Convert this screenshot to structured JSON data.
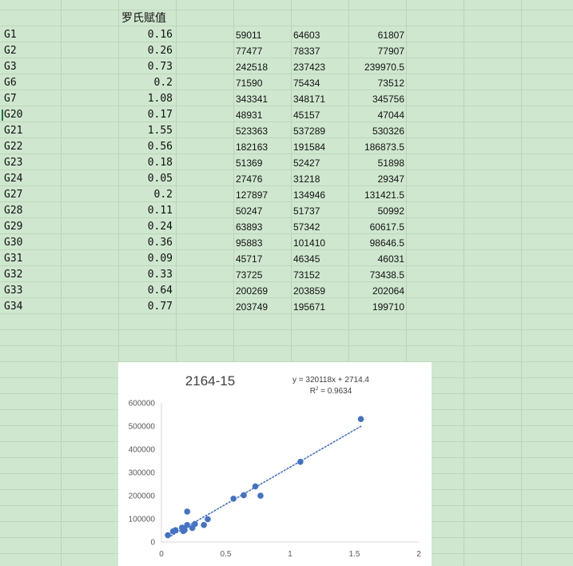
{
  "sheet": {
    "header": "罗氏赋值",
    "rows": [
      {
        "label": "G1",
        "rf": "0.16",
        "v1": "59011",
        "v2": "64603",
        "avg": "61807"
      },
      {
        "label": "G2",
        "rf": "0.26",
        "v1": "77477",
        "v2": "78337",
        "avg": "77907"
      },
      {
        "label": "G3",
        "rf": "0.73",
        "v1": "242518",
        "v2": "237423",
        "avg": "239970.5"
      },
      {
        "label": "G6",
        "rf": "0.2",
        "v1": "71590",
        "v2": "75434",
        "avg": "73512"
      },
      {
        "label": "G7",
        "rf": "1.08",
        "v1": "343341",
        "v2": "348171",
        "avg": "345756"
      },
      {
        "label": "G20",
        "rf": "0.17",
        "v1": "48931",
        "v2": "45157",
        "avg": "47044"
      },
      {
        "label": "G21",
        "rf": "1.55",
        "v1": "523363",
        "v2": "537289",
        "avg": "530326"
      },
      {
        "label": "G22",
        "rf": "0.56",
        "v1": "182163",
        "v2": "191584",
        "avg": "186873.5"
      },
      {
        "label": "G23",
        "rf": "0.18",
        "v1": "51369",
        "v2": "52427",
        "avg": "51898"
      },
      {
        "label": "G24",
        "rf": "0.05",
        "v1": "27476",
        "v2": "31218",
        "avg": "29347"
      },
      {
        "label": "G27",
        "rf": "0.2",
        "v1": "127897",
        "v2": "134946",
        "avg": "131421.5"
      },
      {
        "label": "G28",
        "rf": "0.11",
        "v1": "50247",
        "v2": "51737",
        "avg": "50992"
      },
      {
        "label": "G29",
        "rf": "0.24",
        "v1": "63893",
        "v2": "57342",
        "avg": "60617.5"
      },
      {
        "label": "G30",
        "rf": "0.36",
        "v1": "95883",
        "v2": "101410",
        "avg": "98646.5"
      },
      {
        "label": "G31",
        "rf": "0.09",
        "v1": "45717",
        "v2": "46345",
        "avg": "46031"
      },
      {
        "label": "G32",
        "rf": "0.33",
        "v1": "73725",
        "v2": "73152",
        "avg": "73438.5"
      },
      {
        "label": "G33",
        "rf": "0.64",
        "v1": "200269",
        "v2": "203859",
        "avg": "202064"
      },
      {
        "label": "G34",
        "rf": "0.77",
        "v1": "203749",
        "v2": "195671",
        "avg": "199710"
      }
    ]
  },
  "chart_data": {
    "type": "scatter",
    "title": "2164-15",
    "equation": "y = 320118x + 2714.4",
    "r2_prefix": "R",
    "r2_sup": "2",
    "r2_value": " = 0.9634",
    "xlim": [
      0,
      2
    ],
    "ylim": [
      0,
      600000
    ],
    "x_ticks": [
      "0",
      "0.5",
      "1",
      "1.5",
      "2"
    ],
    "y_ticks": [
      "0",
      "100000",
      "200000",
      "300000",
      "400000",
      "500000",
      "600000"
    ],
    "trendline": {
      "slope": 320118,
      "intercept": 2714.4,
      "style": "dotted"
    },
    "series_color": "#4472c4",
    "points": [
      {
        "x": 0.16,
        "y": 61807
      },
      {
        "x": 0.26,
        "y": 77907
      },
      {
        "x": 0.73,
        "y": 239970.5
      },
      {
        "x": 0.2,
        "y": 73512
      },
      {
        "x": 1.08,
        "y": 345756
      },
      {
        "x": 0.17,
        "y": 47044
      },
      {
        "x": 1.55,
        "y": 530326
      },
      {
        "x": 0.56,
        "y": 186873.5
      },
      {
        "x": 0.18,
        "y": 51898
      },
      {
        "x": 0.05,
        "y": 29347
      },
      {
        "x": 0.2,
        "y": 131421.5
      },
      {
        "x": 0.11,
        "y": 50992
      },
      {
        "x": 0.24,
        "y": 60617.5
      },
      {
        "x": 0.36,
        "y": 98646.5
      },
      {
        "x": 0.09,
        "y": 46031
      },
      {
        "x": 0.33,
        "y": 73438.5
      },
      {
        "x": 0.64,
        "y": 202064
      },
      {
        "x": 0.77,
        "y": 199710
      }
    ]
  }
}
